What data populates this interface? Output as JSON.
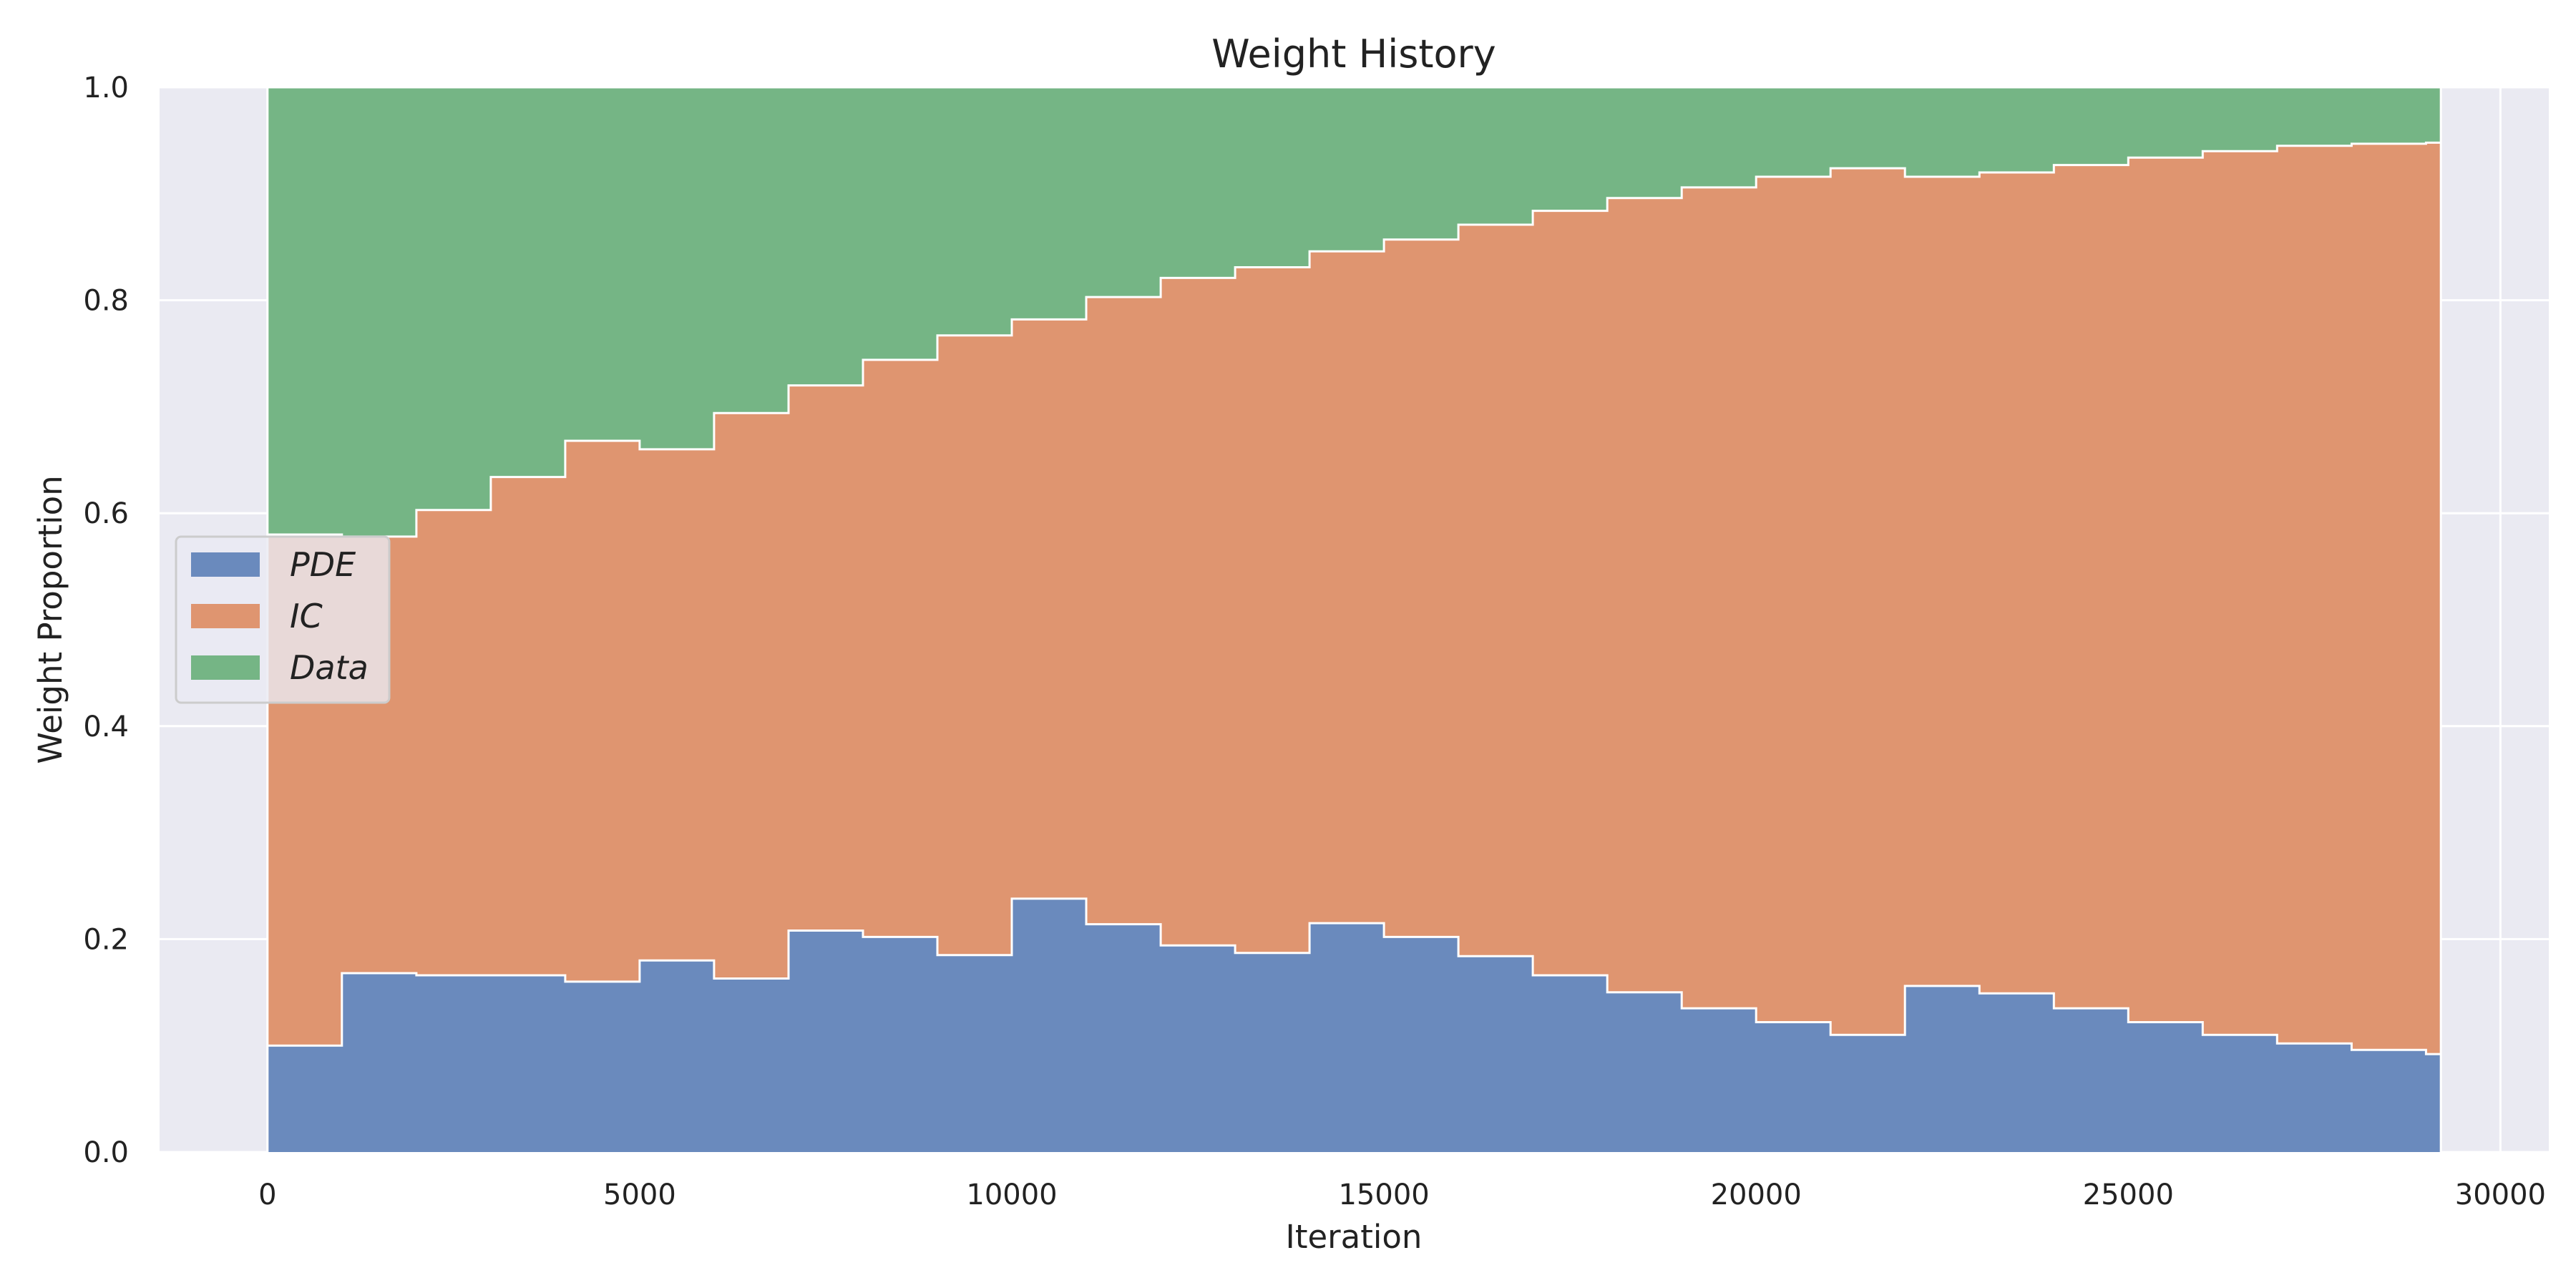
{
  "chart_data": {
    "type": "area",
    "subtype": "stacked-step",
    "title": "Weight History",
    "xlabel": "Iteration",
    "ylabel": "Weight Proportion",
    "xlim": [
      -1450,
      30650
    ],
    "ylim": [
      0.0,
      1.0
    ],
    "xticks": [
      0,
      5000,
      10000,
      15000,
      20000,
      25000,
      30000
    ],
    "yticks": [
      0.0,
      0.2,
      0.4,
      0.6,
      0.8,
      1.0
    ],
    "ytick_labels": [
      "0.0",
      "0.2",
      "0.4",
      "0.6",
      "0.8",
      "1.0"
    ],
    "grid": true,
    "legend_position": "center-left",
    "x": [
      0,
      1000,
      2000,
      3000,
      4000,
      5000,
      6000,
      7000,
      8000,
      9000,
      10000,
      11000,
      12000,
      13000,
      14000,
      15000,
      16000,
      17000,
      18000,
      19000,
      20000,
      21000,
      22000,
      23000,
      24000,
      25000,
      26000,
      27000,
      28000,
      29000,
      29200
    ],
    "series": [
      {
        "name": "PDE",
        "color": "#6a8abd",
        "values": [
          0.1,
          0.168,
          0.166,
          0.166,
          0.16,
          0.18,
          0.163,
          0.208,
          0.202,
          0.185,
          0.238,
          0.214,
          0.194,
          0.187,
          0.215,
          0.202,
          0.184,
          0.166,
          0.15,
          0.135,
          0.122,
          0.11,
          0.156,
          0.149,
          0.135,
          0.122,
          0.11,
          0.102,
          0.096,
          0.092,
          0.092
        ]
      },
      {
        "name": "IC",
        "color": "#df9570",
        "values": [
          0.48,
          0.41,
          0.437,
          0.468,
          0.508,
          0.48,
          0.531,
          0.512,
          0.542,
          0.582,
          0.544,
          0.589,
          0.627,
          0.644,
          0.631,
          0.655,
          0.687,
          0.718,
          0.746,
          0.771,
          0.794,
          0.814,
          0.76,
          0.771,
          0.792,
          0.812,
          0.83,
          0.843,
          0.851,
          0.856,
          0.856
        ]
      },
      {
        "name": "Data",
        "color": "#75b585",
        "values": [
          0.42,
          0.422,
          0.397,
          0.366,
          0.332,
          0.34,
          0.306,
          0.28,
          0.256,
          0.233,
          0.218,
          0.197,
          0.179,
          0.169,
          0.154,
          0.143,
          0.129,
          0.116,
          0.104,
          0.094,
          0.084,
          0.076,
          0.084,
          0.08,
          0.073,
          0.066,
          0.06,
          0.055,
          0.053,
          0.052,
          0.052
        ]
      }
    ]
  }
}
